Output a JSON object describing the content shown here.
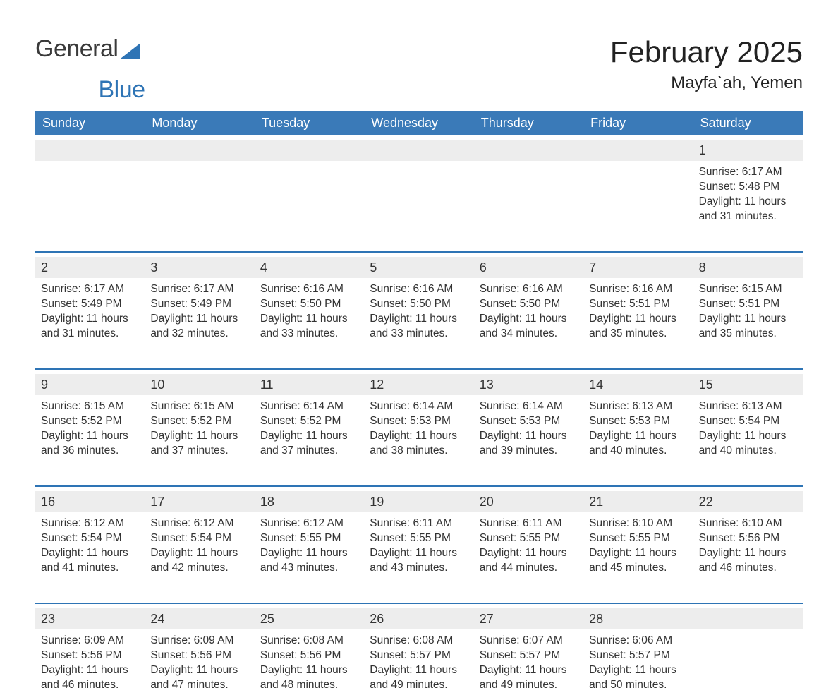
{
  "logo": {
    "part1": "General",
    "part2": "Blue",
    "tri_color": "#2e74b5"
  },
  "title": "February 2025",
  "location": "Mayfa`ah, Yemen",
  "header_bg": "#3a7ab8",
  "accent": "#2e74b5",
  "daynum_bg": "#ededed",
  "day_headers": [
    "Sunday",
    "Monday",
    "Tuesday",
    "Wednesday",
    "Thursday",
    "Friday",
    "Saturday"
  ],
  "weeks": [
    [
      {
        "day": ""
      },
      {
        "day": ""
      },
      {
        "day": ""
      },
      {
        "day": ""
      },
      {
        "day": ""
      },
      {
        "day": ""
      },
      {
        "day": "1",
        "sunrise": "Sunrise: 6:17 AM",
        "sunset": "Sunset: 5:48 PM",
        "daylight": "Daylight: 11 hours and 31 minutes."
      }
    ],
    [
      {
        "day": "2",
        "sunrise": "Sunrise: 6:17 AM",
        "sunset": "Sunset: 5:49 PM",
        "daylight": "Daylight: 11 hours and 31 minutes."
      },
      {
        "day": "3",
        "sunrise": "Sunrise: 6:17 AM",
        "sunset": "Sunset: 5:49 PM",
        "daylight": "Daylight: 11 hours and 32 minutes."
      },
      {
        "day": "4",
        "sunrise": "Sunrise: 6:16 AM",
        "sunset": "Sunset: 5:50 PM",
        "daylight": "Daylight: 11 hours and 33 minutes."
      },
      {
        "day": "5",
        "sunrise": "Sunrise: 6:16 AM",
        "sunset": "Sunset: 5:50 PM",
        "daylight": "Daylight: 11 hours and 33 minutes."
      },
      {
        "day": "6",
        "sunrise": "Sunrise: 6:16 AM",
        "sunset": "Sunset: 5:50 PM",
        "daylight": "Daylight: 11 hours and 34 minutes."
      },
      {
        "day": "7",
        "sunrise": "Sunrise: 6:16 AM",
        "sunset": "Sunset: 5:51 PM",
        "daylight": "Daylight: 11 hours and 35 minutes."
      },
      {
        "day": "8",
        "sunrise": "Sunrise: 6:15 AM",
        "sunset": "Sunset: 5:51 PM",
        "daylight": "Daylight: 11 hours and 35 minutes."
      }
    ],
    [
      {
        "day": "9",
        "sunrise": "Sunrise: 6:15 AM",
        "sunset": "Sunset: 5:52 PM",
        "daylight": "Daylight: 11 hours and 36 minutes."
      },
      {
        "day": "10",
        "sunrise": "Sunrise: 6:15 AM",
        "sunset": "Sunset: 5:52 PM",
        "daylight": "Daylight: 11 hours and 37 minutes."
      },
      {
        "day": "11",
        "sunrise": "Sunrise: 6:14 AM",
        "sunset": "Sunset: 5:52 PM",
        "daylight": "Daylight: 11 hours and 37 minutes."
      },
      {
        "day": "12",
        "sunrise": "Sunrise: 6:14 AM",
        "sunset": "Sunset: 5:53 PM",
        "daylight": "Daylight: 11 hours and 38 minutes."
      },
      {
        "day": "13",
        "sunrise": "Sunrise: 6:14 AM",
        "sunset": "Sunset: 5:53 PM",
        "daylight": "Daylight: 11 hours and 39 minutes."
      },
      {
        "day": "14",
        "sunrise": "Sunrise: 6:13 AM",
        "sunset": "Sunset: 5:53 PM",
        "daylight": "Daylight: 11 hours and 40 minutes."
      },
      {
        "day": "15",
        "sunrise": "Sunrise: 6:13 AM",
        "sunset": "Sunset: 5:54 PM",
        "daylight": "Daylight: 11 hours and 40 minutes."
      }
    ],
    [
      {
        "day": "16",
        "sunrise": "Sunrise: 6:12 AM",
        "sunset": "Sunset: 5:54 PM",
        "daylight": "Daylight: 11 hours and 41 minutes."
      },
      {
        "day": "17",
        "sunrise": "Sunrise: 6:12 AM",
        "sunset": "Sunset: 5:54 PM",
        "daylight": "Daylight: 11 hours and 42 minutes."
      },
      {
        "day": "18",
        "sunrise": "Sunrise: 6:12 AM",
        "sunset": "Sunset: 5:55 PM",
        "daylight": "Daylight: 11 hours and 43 minutes."
      },
      {
        "day": "19",
        "sunrise": "Sunrise: 6:11 AM",
        "sunset": "Sunset: 5:55 PM",
        "daylight": "Daylight: 11 hours and 43 minutes."
      },
      {
        "day": "20",
        "sunrise": "Sunrise: 6:11 AM",
        "sunset": "Sunset: 5:55 PM",
        "daylight": "Daylight: 11 hours and 44 minutes."
      },
      {
        "day": "21",
        "sunrise": "Sunrise: 6:10 AM",
        "sunset": "Sunset: 5:55 PM",
        "daylight": "Daylight: 11 hours and 45 minutes."
      },
      {
        "day": "22",
        "sunrise": "Sunrise: 6:10 AM",
        "sunset": "Sunset: 5:56 PM",
        "daylight": "Daylight: 11 hours and 46 minutes."
      }
    ],
    [
      {
        "day": "23",
        "sunrise": "Sunrise: 6:09 AM",
        "sunset": "Sunset: 5:56 PM",
        "daylight": "Daylight: 11 hours and 46 minutes."
      },
      {
        "day": "24",
        "sunrise": "Sunrise: 6:09 AM",
        "sunset": "Sunset: 5:56 PM",
        "daylight": "Daylight: 11 hours and 47 minutes."
      },
      {
        "day": "25",
        "sunrise": "Sunrise: 6:08 AM",
        "sunset": "Sunset: 5:56 PM",
        "daylight": "Daylight: 11 hours and 48 minutes."
      },
      {
        "day": "26",
        "sunrise": "Sunrise: 6:08 AM",
        "sunset": "Sunset: 5:57 PM",
        "daylight": "Daylight: 11 hours and 49 minutes."
      },
      {
        "day": "27",
        "sunrise": "Sunrise: 6:07 AM",
        "sunset": "Sunset: 5:57 PM",
        "daylight": "Daylight: 11 hours and 49 minutes."
      },
      {
        "day": "28",
        "sunrise": "Sunrise: 6:06 AM",
        "sunset": "Sunset: 5:57 PM",
        "daylight": "Daylight: 11 hours and 50 minutes."
      },
      {
        "day": ""
      }
    ]
  ]
}
